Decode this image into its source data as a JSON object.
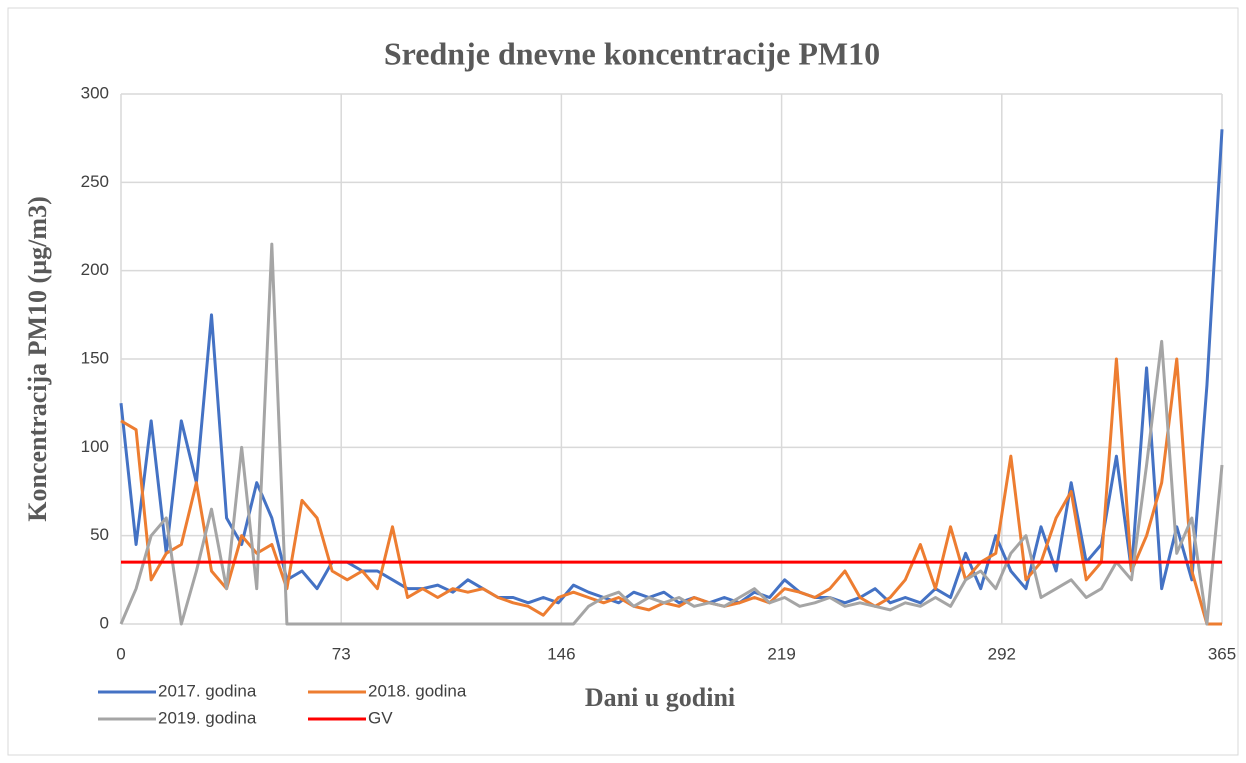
{
  "chart_data": {
    "type": "line",
    "title": "Srednje dnevne koncentracije PM10",
    "x_label": "Dani u godini",
    "y_label": "Koncentracija PM10 (µg/m3)",
    "x": [
      0,
      5,
      10,
      15,
      20,
      25,
      30,
      35,
      40,
      45,
      50,
      55,
      60,
      65,
      70,
      75,
      80,
      85,
      90,
      95,
      100,
      105,
      110,
      115,
      120,
      125,
      130,
      135,
      140,
      145,
      150,
      155,
      160,
      165,
      170,
      175,
      180,
      185,
      190,
      195,
      200,
      205,
      210,
      215,
      220,
      225,
      230,
      235,
      240,
      245,
      250,
      255,
      260,
      265,
      270,
      275,
      280,
      285,
      290,
      295,
      300,
      305,
      310,
      315,
      320,
      325,
      330,
      335,
      340,
      345,
      350,
      355,
      360,
      365
    ],
    "series": [
      {
        "name": "2017. godina",
        "color": "#4472c4",
        "values": [
          125,
          45,
          115,
          40,
          115,
          80,
          175,
          60,
          45,
          80,
          60,
          25,
          30,
          20,
          35,
          35,
          30,
          30,
          25,
          20,
          20,
          22,
          18,
          25,
          20,
          15,
          15,
          12,
          15,
          12,
          22,
          18,
          15,
          12,
          18,
          15,
          18,
          12,
          15,
          12,
          15,
          12,
          18,
          15,
          25,
          18,
          15,
          15,
          12,
          15,
          20,
          12,
          15,
          12,
          20,
          15,
          40,
          20,
          50,
          30,
          20,
          55,
          30,
          80,
          35,
          45,
          95,
          30,
          145,
          20,
          55,
          25,
          135,
          280
        ]
      },
      {
        "name": "2018. godina",
        "color": "#ed7d31",
        "values": [
          115,
          110,
          25,
          40,
          45,
          80,
          30,
          20,
          50,
          40,
          45,
          20,
          70,
          60,
          30,
          25,
          30,
          20,
          55,
          15,
          20,
          15,
          20,
          18,
          20,
          15,
          12,
          10,
          5,
          15,
          18,
          15,
          12,
          15,
          10,
          8,
          12,
          10,
          15,
          12,
          10,
          12,
          15,
          12,
          20,
          18,
          15,
          20,
          30,
          15,
          10,
          15,
          25,
          45,
          20,
          55,
          25,
          35,
          40,
          95,
          25,
          35,
          60,
          75,
          25,
          35,
          150,
          30,
          50,
          80,
          150,
          30,
          0,
          0
        ]
      },
      {
        "name": "2019. godina",
        "color": "#a5a5a5",
        "values": [
          0,
          20,
          50,
          60,
          0,
          30,
          65,
          20,
          100,
          20,
          215,
          0,
          0,
          0,
          0,
          0,
          0,
          0,
          0,
          0,
          0,
          0,
          0,
          0,
          0,
          0,
          0,
          0,
          0,
          0,
          0,
          10,
          15,
          18,
          10,
          15,
          12,
          15,
          10,
          12,
          10,
          15,
          20,
          12,
          15,
          10,
          12,
          15,
          10,
          12,
          10,
          8,
          12,
          10,
          15,
          10,
          25,
          30,
          20,
          40,
          50,
          15,
          20,
          25,
          15,
          20,
          35,
          25,
          90,
          160,
          40,
          60,
          0,
          90
        ]
      },
      {
        "name": "GV",
        "color": "#ff0000",
        "values": [
          35,
          35,
          35,
          35,
          35,
          35,
          35,
          35,
          35,
          35,
          35,
          35,
          35,
          35,
          35,
          35,
          35,
          35,
          35,
          35,
          35,
          35,
          35,
          35,
          35,
          35,
          35,
          35,
          35,
          35,
          35,
          35,
          35,
          35,
          35,
          35,
          35,
          35,
          35,
          35,
          35,
          35,
          35,
          35,
          35,
          35,
          35,
          35,
          35,
          35,
          35,
          35,
          35,
          35,
          35,
          35,
          35,
          35,
          35,
          35,
          35,
          35,
          35,
          35,
          35,
          35,
          35,
          35,
          35,
          35,
          35,
          35,
          35,
          35
        ]
      }
    ],
    "xlim": [
      0,
      365
    ],
    "xticks": [
      0,
      73,
      146,
      219,
      292,
      365
    ],
    "ylim": [
      0,
      300
    ],
    "yticks": [
      0,
      50,
      100,
      150,
      200,
      250,
      300
    ],
    "grid": true,
    "legend": "bottom-left"
  }
}
